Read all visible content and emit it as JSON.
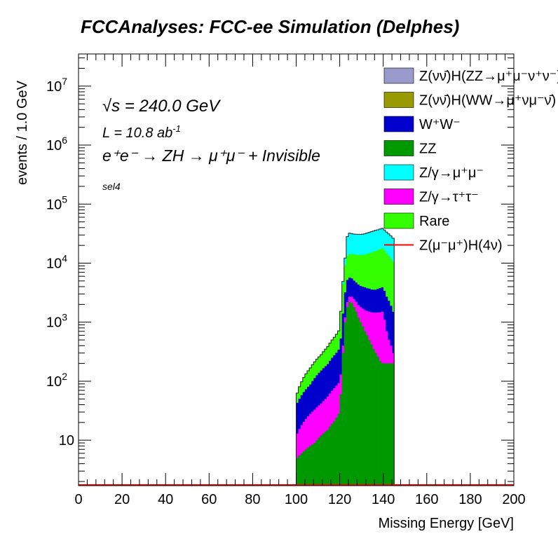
{
  "chart_data": {
    "type": "area",
    "title": "FCCAnalyses: FCC-ee Simulation (Delphes)",
    "xlabel": "Missing Energy [GeV]",
    "ylabel": "events / 1.0 GeV",
    "xlim": [
      0,
      200
    ],
    "ylim": [
      1.7,
      35000000
    ],
    "ylog": true,
    "grid": false,
    "legend_position": "top-right",
    "x_ticks": [
      0,
      20,
      40,
      60,
      80,
      100,
      120,
      140,
      160,
      180,
      200
    ],
    "x_tick_labels": [
      "0",
      "20",
      "40",
      "60",
      "80",
      "100",
      "120",
      "140",
      "160",
      "180",
      "200"
    ],
    "y_ticks": [
      10,
      100,
      1000,
      10000,
      100000,
      1000000,
      10000000
    ],
    "annotations": {
      "energy_pre": "√",
      "energy_s": "s",
      "energy_rest": " = 240.0 GeV",
      "lumi_main": "L = 10.8 ab",
      "lumi_exp": "-1",
      "process": "e⁺e⁻ → ZH → μ⁺μ⁻ + Invisible",
      "selection": "sel4"
    },
    "legend": [
      {
        "label": "Z(νν̄)H(ZZ→μ⁺μ⁻ν⁺ν⁻)",
        "color": "#9999cc",
        "kind": "fill"
      },
      {
        "label": "Z(νν̄)H(WW→μ⁺νμ⁻ν̄)",
        "color": "#999900",
        "kind": "fill"
      },
      {
        "label": "W⁺W⁻",
        "color": "#0000cc",
        "kind": "fill"
      },
      {
        "label": "ZZ",
        "color": "#009900",
        "kind": "fill"
      },
      {
        "label": "Z/γ→μ⁺μ⁻",
        "color": "#00ffff",
        "kind": "fill"
      },
      {
        "label": "Z/γ→τ⁺τ⁻",
        "color": "#ff00ff",
        "kind": "fill"
      },
      {
        "label": "Rare",
        "color": "#33ff00",
        "kind": "fill"
      },
      {
        "label": "Z(μ⁻μ⁺)H(4ν)",
        "color": "#ff0000",
        "kind": "line"
      }
    ],
    "x": [
      101,
      102,
      103,
      104,
      105,
      106,
      107,
      108,
      109,
      110,
      111,
      112,
      113,
      114,
      115,
      116,
      117,
      118,
      119,
      120,
      121,
      122,
      123,
      124,
      125,
      126,
      127,
      128,
      129,
      130,
      131,
      132,
      133,
      134,
      135,
      136,
      137,
      138,
      139,
      140,
      141,
      142,
      143,
      144,
      145
    ],
    "series": [
      {
        "name": "ZZ",
        "color": "#009900",
        "values": [
          5,
          5.5,
          6,
          6.5,
          7,
          7.5,
          8,
          8.5,
          9,
          10,
          11,
          12,
          13,
          14,
          15,
          17,
          19,
          21,
          24,
          28,
          60,
          300,
          1000,
          1800,
          2200,
          2100,
          1800,
          1500,
          1200,
          1000,
          850,
          700,
          600,
          500,
          420,
          350,
          300,
          260,
          220,
          200,
          200,
          200,
          200,
          200,
          200
        ]
      },
      {
        "name": "Z/γ→τ⁺τ⁻",
        "color": "#ff00ff",
        "values": [
          8,
          10,
          12,
          14,
          16,
          18,
          20,
          22,
          24,
          26,
          28,
          30,
          33,
          36,
          40,
          45,
          50,
          55,
          60,
          65,
          70,
          100,
          200,
          400,
          500,
          600,
          650,
          700,
          750,
          800,
          850,
          900,
          950,
          1000,
          1050,
          1100,
          1150,
          1200,
          1250,
          1300,
          900,
          500,
          300,
          200,
          100
        ]
      },
      {
        "name": "W⁺W⁻",
        "color": "#0000cc",
        "values": [
          30,
          35,
          40,
          45,
          50,
          55,
          60,
          70,
          80,
          90,
          100,
          110,
          120,
          130,
          140,
          160,
          180,
          200,
          220,
          250,
          400,
          1000,
          2000,
          3000,
          3000,
          2800,
          2600,
          2500,
          2400,
          2300,
          2300,
          2300,
          2200,
          2200,
          2100,
          2100,
          2100,
          2200,
          2300,
          2400,
          2300,
          2000,
          1800,
          1500,
          1200
        ]
      },
      {
        "name": "Rare",
        "color": "#33ff00",
        "values": [
          20,
          30,
          40,
          50,
          60,
          70,
          80,
          90,
          100,
          110,
          120,
          130,
          150,
          170,
          190,
          220,
          250,
          280,
          320,
          370,
          1000,
          3000,
          6000,
          8000,
          8500,
          8700,
          9000,
          9200,
          9400,
          9600,
          9800,
          10000,
          10500,
          11000,
          11500,
          12000,
          12500,
          13000,
          13500,
          14000,
          13000,
          12000,
          11000,
          10000,
          9000
        ]
      },
      {
        "name": "Z/γ→μ⁺μ⁻",
        "color": "#00ffff",
        "values": [
          0,
          0,
          0,
          0,
          0,
          0,
          0,
          0,
          0,
          0,
          0,
          0,
          0,
          0,
          0,
          0,
          0,
          0,
          0,
          0,
          0,
          500,
          3000,
          15000,
          18000,
          17500,
          17000,
          17000,
          17000,
          17000,
          17200,
          17500,
          18000,
          18500,
          19000,
          19500,
          20000,
          20000,
          20500,
          21000,
          20000,
          19000,
          18000,
          17000,
          16000
        ]
      },
      {
        "name": "Z(νν̄)H(WW→μ⁺νμ⁻ν̄)",
        "color": "#999900",
        "values": [
          0,
          0,
          0,
          0,
          0,
          0,
          0,
          0,
          0,
          0,
          0,
          0,
          0,
          0,
          0,
          0,
          0,
          0,
          0,
          0,
          0,
          0,
          0,
          0,
          0,
          0,
          0,
          0,
          0,
          0,
          0,
          0,
          0,
          0,
          0,
          0,
          0,
          0,
          0,
          0,
          0,
          0,
          0,
          0,
          0
        ]
      },
      {
        "name": "Z(νν̄)H(ZZ→μ⁺μ⁻ν⁺ν⁻)",
        "color": "#9999cc",
        "values": [
          0,
          0,
          0,
          0,
          0,
          0,
          0,
          0,
          0,
          0,
          0,
          0,
          0,
          0,
          0,
          0,
          0,
          0,
          0,
          0,
          0,
          0,
          0,
          0,
          0,
          0,
          0,
          0,
          0,
          0,
          0,
          0,
          0,
          0,
          0,
          0,
          0,
          0,
          0,
          0,
          0,
          0,
          0,
          0,
          0
        ]
      }
    ],
    "signal": {
      "name": "Z(μ⁻μ⁺)H(4ν)",
      "color": "#ff0000",
      "values": [
        0,
        0,
        0,
        0,
        0,
        0,
        0,
        0,
        0,
        0,
        0,
        0,
        0,
        0,
        0,
        0,
        0,
        0,
        0,
        0,
        0,
        0,
        0,
        0,
        0,
        0,
        0,
        0,
        0,
        0,
        0,
        0,
        0,
        0,
        0,
        0,
        0,
        0,
        0,
        0,
        0,
        0,
        0,
        0,
        0
      ]
    }
  }
}
